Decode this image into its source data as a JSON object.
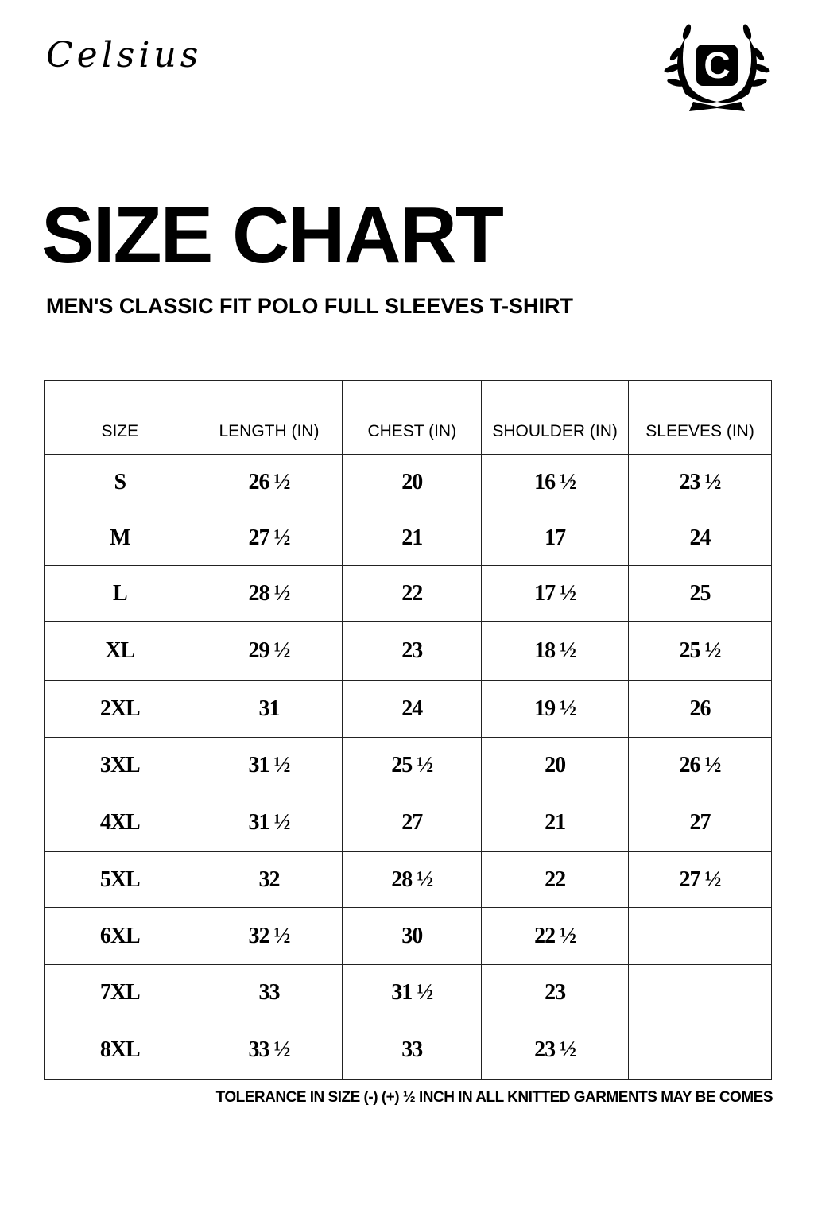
{
  "brand": {
    "name": "Celsius",
    "logo_letter": "C"
  },
  "title": "SIZE CHART",
  "subtitle": "MEN'S CLASSIC FIT POLO FULL SLEEVES T-SHIRT",
  "table": {
    "headers": [
      "SIZE",
      "LENGTH (IN)",
      "CHEST (IN)",
      "SHOULDER (IN)",
      "SLEEVES (IN)"
    ],
    "rows": [
      [
        "S",
        "26 ½",
        "20",
        "16 ½",
        "23 ½"
      ],
      [
        "M",
        "27 ½",
        "21",
        "17",
        "24"
      ],
      [
        "L",
        "28 ½",
        "22",
        "17 ½",
        "25"
      ],
      [
        "XL",
        "29 ½",
        "23",
        "18 ½",
        "25 ½"
      ],
      [
        "2XL",
        "31",
        "24",
        "19 ½",
        "26"
      ],
      [
        "3XL",
        "31 ½",
        "25 ½",
        "20",
        "26 ½"
      ],
      [
        "4XL",
        "31 ½",
        "27",
        "21",
        "27"
      ],
      [
        "5XL",
        "32",
        "28 ½",
        "22",
        "27 ½"
      ],
      [
        "6XL",
        "32 ½",
        "30",
        "22 ½",
        ""
      ],
      [
        "7XL",
        "33",
        "31 ½",
        "23",
        ""
      ],
      [
        "8XL",
        "33 ½",
        "33",
        "23 ½",
        ""
      ]
    ]
  },
  "note": "TOLERANCE IN SIZE (-) (+) ½ INCH IN ALL KNITTED GARMENTS MAY BE COMES"
}
